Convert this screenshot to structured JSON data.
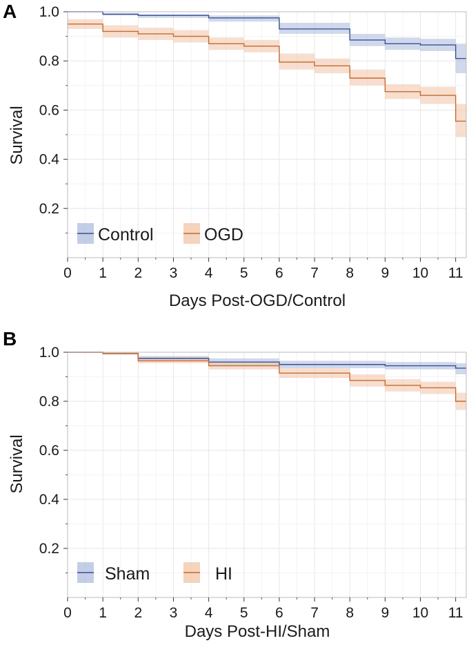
{
  "chart_data": [
    {
      "type": "line",
      "panel_label": "A",
      "xlabel": "Days Post-OGD/Control",
      "ylabel": "Survival",
      "xlim": [
        0,
        11.3
      ],
      "ylim": [
        0,
        1.0
      ],
      "x_ticks": [
        0,
        1,
        2,
        3,
        4,
        5,
        6,
        7,
        8,
        9,
        10,
        11
      ],
      "x_tick_labels": [
        "0",
        "1",
        "2",
        "3",
        "4",
        "5",
        "6",
        "7",
        "8",
        "9",
        "10",
        "11"
      ],
      "y_ticks": [
        0.2,
        0.4,
        0.6,
        0.8,
        1.0
      ],
      "y_tick_labels": [
        "0.2",
        "0.4",
        "0.6",
        "0.8",
        "1.0"
      ],
      "grid": true,
      "legend_position": "bottom-left",
      "series": [
        {
          "name": "Control",
          "color": "#3b4f96",
          "band_color": "#a9b9db",
          "steps_x": [
            0,
            1,
            2,
            4,
            6,
            8,
            9,
            10,
            11,
            11.3
          ],
          "steps_y": [
            1.0,
            0.99,
            0.985,
            0.975,
            0.93,
            0.885,
            0.87,
            0.865,
            0.81,
            0.81
          ],
          "lower": [
            1.0,
            0.985,
            0.975,
            0.96,
            0.91,
            0.86,
            0.845,
            0.84,
            0.75,
            0.75
          ],
          "upper": [
            1.0,
            0.995,
            0.99,
            0.985,
            0.955,
            0.91,
            0.895,
            0.89,
            0.87,
            0.87
          ]
        },
        {
          "name": "OGD",
          "color": "#c56a2d",
          "band_color": "#f2c8ad",
          "steps_x": [
            0,
            1,
            2,
            3,
            4,
            5,
            6,
            7,
            8,
            9,
            10,
            11,
            11.3
          ],
          "steps_y": [
            0.95,
            0.92,
            0.91,
            0.9,
            0.87,
            0.86,
            0.795,
            0.78,
            0.73,
            0.675,
            0.66,
            0.555,
            0.555
          ],
          "lower": [
            0.93,
            0.895,
            0.885,
            0.875,
            0.845,
            0.835,
            0.765,
            0.75,
            0.7,
            0.645,
            0.625,
            0.49,
            0.49
          ],
          "upper": [
            0.97,
            0.945,
            0.935,
            0.925,
            0.895,
            0.885,
            0.83,
            0.81,
            0.765,
            0.705,
            0.695,
            0.625,
            0.625
          ]
        }
      ]
    },
    {
      "type": "line",
      "panel_label": "B",
      "xlabel": "Days Post-HI/Sham",
      "ylabel": "Survival",
      "xlim": [
        0,
        11.3
      ],
      "ylim": [
        0,
        1.0
      ],
      "x_ticks": [
        0,
        1,
        2,
        3,
        4,
        5,
        6,
        7,
        8,
        9,
        10,
        11
      ],
      "x_tick_labels": [
        "0",
        "1",
        "2",
        "3",
        "4",
        "5",
        "6",
        "7",
        "8",
        "9",
        "10",
        "11"
      ],
      "y_ticks": [
        0.2,
        0.4,
        0.6,
        0.8,
        1.0
      ],
      "y_tick_labels": [
        "0.2",
        "0.4",
        "0.6",
        "0.8",
        "1.0"
      ],
      "grid": true,
      "legend_position": "bottom-left",
      "series": [
        {
          "name": "Sham",
          "color": "#3b4f96",
          "band_color": "#a9b9db",
          "steps_x": [
            0,
            1,
            2,
            4,
            6,
            9,
            11,
            11.3
          ],
          "steps_y": [
            1.0,
            0.995,
            0.975,
            0.96,
            0.95,
            0.945,
            0.935,
            0.935
          ],
          "lower": [
            1.0,
            0.99,
            0.965,
            0.945,
            0.935,
            0.93,
            0.91,
            0.91
          ],
          "upper": [
            1.0,
            1.0,
            0.985,
            0.975,
            0.965,
            0.96,
            0.955,
            0.955
          ]
        },
        {
          "name": "HI",
          "color": "#c56a2d",
          "band_color": "#f2c8ad",
          "steps_x": [
            0,
            1,
            2,
            4,
            6,
            8,
            9,
            10,
            11,
            11.3
          ],
          "steps_y": [
            1.0,
            0.995,
            0.965,
            0.945,
            0.915,
            0.885,
            0.865,
            0.855,
            0.8,
            0.8
          ],
          "lower": [
            1.0,
            0.99,
            0.955,
            0.93,
            0.895,
            0.86,
            0.84,
            0.83,
            0.765,
            0.765
          ],
          "upper": [
            1.0,
            1.0,
            0.98,
            0.96,
            0.935,
            0.91,
            0.89,
            0.88,
            0.835,
            0.835
          ]
        }
      ]
    }
  ]
}
